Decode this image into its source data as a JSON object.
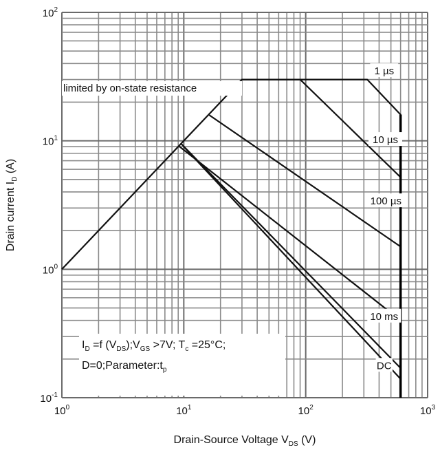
{
  "chart_data": {
    "type": "line",
    "title": "",
    "xscale": "log",
    "yscale": "log",
    "xlim": [
      1,
      1000
    ],
    "ylim": [
      0.1,
      100
    ],
    "grid": true,
    "legend": "none",
    "xlabel": {
      "main": "Drain-Source Voltage V",
      "sub": "DS",
      "unit": " (V)"
    },
    "ylabel": {
      "main": "Drain current I",
      "sub": "D",
      "unit": " (A)"
    },
    "xticks": [
      {
        "base": "10",
        "exp": "0",
        "value": 1
      },
      {
        "base": "10",
        "exp": "1",
        "value": 10
      },
      {
        "base": "10",
        "exp": "2",
        "value": 100
      },
      {
        "base": "10",
        "exp": "3",
        "value": 1000
      }
    ],
    "yticks": [
      {
        "base": "10",
        "exp": "-1",
        "value": 0.1
      },
      {
        "base": "10",
        "exp": "0",
        "value": 1
      },
      {
        "base": "10",
        "exp": "1",
        "value": 10
      },
      {
        "base": "10",
        "exp": "2",
        "value": 100
      }
    ],
    "series": [
      {
        "name": "1 µs",
        "points": [
          [
            1,
            1
          ],
          [
            30,
            30
          ],
          [
            320,
            30
          ],
          [
            600,
            16
          ],
          [
            600,
            0.1
          ]
        ]
      },
      {
        "name": "10 µs",
        "points": [
          [
            30,
            30
          ],
          [
            90,
            30
          ],
          [
            600,
            5.2
          ]
        ]
      },
      {
        "name": "100 µs",
        "points": [
          [
            16,
            16
          ],
          [
            600,
            1.5
          ]
        ]
      },
      {
        "name": "10 ms",
        "points": [
          [
            9.1,
            9.1
          ],
          [
            600,
            0.4
          ]
        ]
      },
      {
        "name": "",
        "points": [
          [
            9.5,
            9.5
          ],
          [
            600,
            0.17
          ]
        ]
      },
      {
        "name": "DC",
        "points": [
          [
            10,
            9
          ],
          [
            600,
            0.14
          ]
        ]
      }
    ],
    "annotations": {
      "limit": "limited by on-state resistance"
    },
    "label_positions": [
      {
        "series": "1 µs",
        "x": 440,
        "y": 35
      },
      {
        "series": "10 µs",
        "x": 450,
        "y": 10.2
      },
      {
        "series": "100 µs",
        "x": 455,
        "y": 3.4
      },
      {
        "series": "10 ms",
        "x": 440,
        "y": 0.43
      },
      {
        "series": "DC",
        "x": 440,
        "y": 0.178
      }
    ]
  },
  "conditions": {
    "line1": {
      "a": "I",
      "a_sub": "D",
      "b": " =f (V",
      "b_sub": "DS",
      "c": ");V",
      "c_sub": "GS",
      "d": " >7V; T",
      "d_sub": "c",
      "e": " =25°C;"
    },
    "line2": {
      "a": "D=0;Parameter:t",
      "a_sub": "p"
    }
  }
}
